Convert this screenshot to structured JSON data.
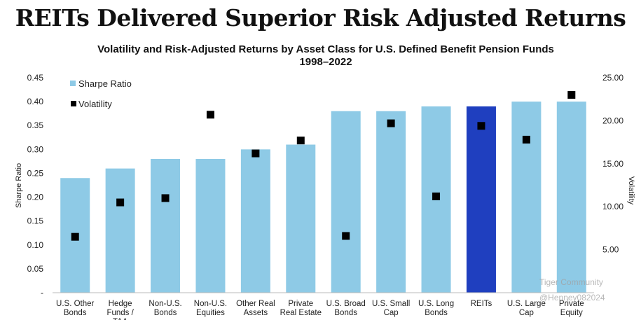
{
  "headline": "REITs Delivered Superior Risk Adjusted Returns",
  "chart_data": {
    "type": "bar",
    "title": "Volatility and Risk-Adjusted Returns by Asset Class for U.S. Defined Benefit Pension Funds",
    "subtitle": "1998–2022",
    "categories": [
      [
        "U.S. Other",
        "Bonds"
      ],
      [
        "Hedge",
        "Funds /",
        "TAA"
      ],
      [
        "Non-U.S.",
        "Bonds"
      ],
      [
        "Non-U.S.",
        "Equities"
      ],
      [
        "Other Real",
        "Assets"
      ],
      [
        "Private",
        "Real Estate"
      ],
      [
        "U.S. Broad",
        "Bonds"
      ],
      [
        "U.S. Small",
        "Cap"
      ],
      [
        "U.S. Long",
        "Bonds"
      ],
      [
        "REITs"
      ],
      [
        "U.S. Large",
        "Cap"
      ],
      [
        "Private",
        "Equity"
      ]
    ],
    "series": [
      {
        "name": "Sharpe Ratio",
        "type": "bar",
        "axis": "left",
        "values": [
          0.24,
          0.26,
          0.28,
          0.28,
          0.3,
          0.31,
          0.38,
          0.38,
          0.39,
          0.39,
          0.4,
          0.4
        ]
      },
      {
        "name": "Volatility",
        "type": "scatter",
        "axis": "right",
        "values": [
          6.5,
          10.5,
          11.0,
          20.7,
          16.2,
          17.7,
          6.6,
          19.7,
          11.2,
          19.4,
          17.8,
          23.0
        ]
      }
    ],
    "highlight_index": 9,
    "ylabel": "Sharpe Ratio",
    "y2label": "Volatility",
    "ylim": [
      0,
      0.45
    ],
    "y2lim": [
      0,
      25
    ],
    "yticks": [
      "-",
      "0.05",
      "0.10",
      "0.15",
      "0.20",
      "0.25",
      "0.30",
      "0.35",
      "0.40",
      "0.45"
    ],
    "y2ticks": [
      "5.00",
      "10.00",
      "15.00",
      "20.00",
      "25.00"
    ],
    "legend_position": "top-left",
    "grid": false,
    "colors": {
      "bar": "#8ecae6",
      "highlight": "#1f3fbf",
      "marker": "#000000"
    }
  },
  "watermark": {
    "line1": "Tiger Community",
    "line2": "@Henney082024"
  }
}
